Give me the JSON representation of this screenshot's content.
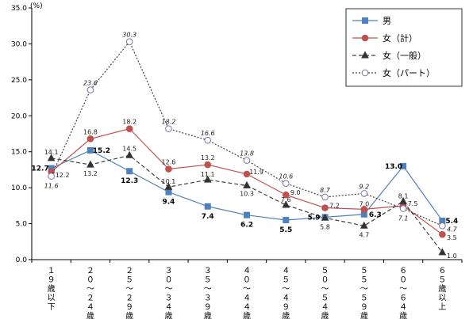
{
  "chart_data": {
    "type": "line",
    "ylabel": "(%)",
    "ylim": [
      0,
      35
    ],
    "yticks": [
      "0.0",
      "5.0",
      "10.0",
      "15.0",
      "20.0",
      "25.0",
      "30.0",
      "35.0"
    ],
    "categories": [
      "１９歳以下",
      "２０～２４歳",
      "２５～２９歳",
      "３０～３４歳",
      "３５～３９歳",
      "４０～４４歳",
      "４５～４９歳",
      "５０～５４歳",
      "５５～５９歳",
      "６０～６４歳",
      "６５歳以上"
    ],
    "legend_position": "top-right",
    "grid": false,
    "series": [
      {
        "name": "男",
        "color": "#4F81BD",
        "line": "solid",
        "marker": "square",
        "values": [
          12.7,
          15.2,
          12.3,
          9.4,
          7.4,
          6.2,
          5.5,
          5.9,
          6.3,
          13.0,
          5.4
        ],
        "labels": [
          "12.7",
          "15.2",
          "12.3",
          "9.4",
          "7.4",
          "6.2",
          "5.5",
          "5.9",
          "6.3",
          "13.0",
          "5.4"
        ]
      },
      {
        "name": "女（計）",
        "color": "#C0504D",
        "line": "solid",
        "marker": "circle",
        "values": [
          12.2,
          16.8,
          18.2,
          12.6,
          13.2,
          11.9,
          9.0,
          7.2,
          7.0,
          7.5,
          3.5
        ],
        "labels": [
          "12.2",
          "16.8",
          "18.2",
          "12.6",
          "13.2",
          "11.9",
          "9.0",
          "7.2",
          "7.0",
          "7.5",
          "3.5"
        ]
      },
      {
        "name": "女（一般）",
        "color": "#404040",
        "line": "dashed",
        "marker": "triangle",
        "values": [
          14.1,
          13.2,
          14.5,
          10.1,
          11.1,
          10.3,
          7.6,
          5.8,
          4.7,
          8.1,
          1.0
        ],
        "labels": [
          "14.1",
          "13.2",
          "14.5",
          "10.1",
          "11.1",
          "10.3",
          "7.6",
          "5.8",
          "4.7",
          "8.1",
          "1.0"
        ]
      },
      {
        "name": "女（パート）",
        "color": "#404040",
        "line": "dotted",
        "marker": "open-circle",
        "marker_color": "#7F6FB0",
        "values": [
          11.6,
          23.6,
          30.3,
          18.2,
          16.6,
          13.8,
          10.6,
          8.7,
          9.2,
          7.1,
          4.7
        ],
        "labels": [
          "11.6",
          "23.6",
          "30.3",
          "18.2",
          "16.6",
          "13.8",
          "10.6",
          "8.7",
          "9.2",
          "7.1",
          "4.7"
        ]
      }
    ]
  }
}
